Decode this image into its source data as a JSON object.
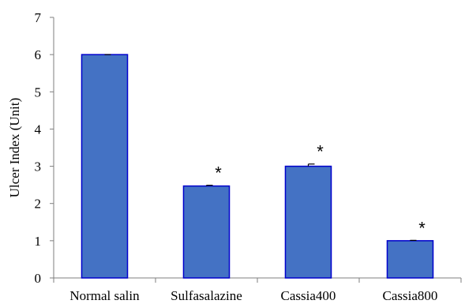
{
  "chart_data": {
    "type": "bar",
    "title": "",
    "xlabel": "",
    "ylabel": "Ulcer Index (Unit)",
    "ylim": [
      0,
      7
    ],
    "yticks": [
      0,
      1,
      2,
      3,
      4,
      5,
      6,
      7
    ],
    "categories": [
      "Normal salin",
      "Sulfasalazine",
      "Cassia400",
      "Cassia800"
    ],
    "values": [
      6.0,
      2.47,
      3.0,
      1.0
    ],
    "error": [
      0.0,
      0.02,
      0.06,
      0.01
    ],
    "significance": [
      "",
      "*",
      "*",
      "*"
    ],
    "grid": false,
    "colors": {
      "bar_fill": "#4472C4",
      "bar_stroke": "#0000CC",
      "axis": "#7f7f7f"
    }
  }
}
